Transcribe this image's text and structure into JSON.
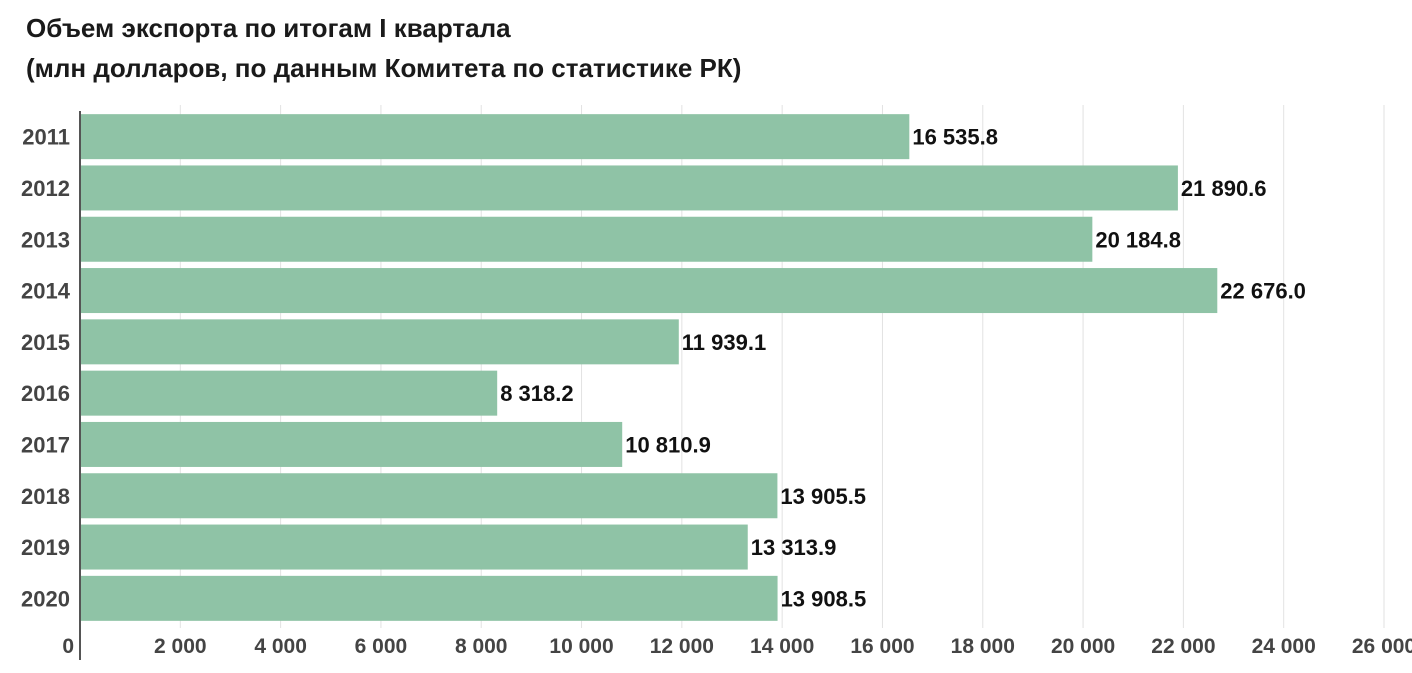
{
  "chart_data": {
    "type": "bar",
    "orientation": "horizontal",
    "title": "Объем экспорта по итогам I квартала",
    "subtitle": "(млн долларов, по данным Комитета по статистике РК)",
    "categories": [
      "2011",
      "2012",
      "2013",
      "2014",
      "2015",
      "2016",
      "2017",
      "2018",
      "2019",
      "2020"
    ],
    "values": [
      16535.8,
      21890.6,
      20184.8,
      22676.0,
      11939.1,
      8318.2,
      10810.9,
      13905.5,
      13313.9,
      13908.5
    ],
    "value_labels": [
      "16 535.8",
      "21 890.6",
      "20 184.8",
      "22 676.0",
      "11 939.1",
      "8 318.2",
      "10 810.9",
      "13 905.5",
      "13 313.9",
      "13 908.5"
    ],
    "xlim": [
      0,
      26000
    ],
    "xticks": [
      0,
      2000,
      4000,
      6000,
      8000,
      10000,
      12000,
      14000,
      16000,
      18000,
      20000,
      22000,
      24000,
      26000
    ],
    "xtick_labels": [
      "0",
      "2 000",
      "4 000",
      "6 000",
      "8 000",
      "10 000",
      "12 000",
      "14 000",
      "16 000",
      "18 000",
      "20 000",
      "22 000",
      "24 000",
      "26 000"
    ],
    "xlabel": "",
    "ylabel": "",
    "grid": true,
    "legend": "none",
    "colors": {
      "bar": "#8fc3a6",
      "grid": "#e2e2e2",
      "axis": "#555555"
    }
  }
}
